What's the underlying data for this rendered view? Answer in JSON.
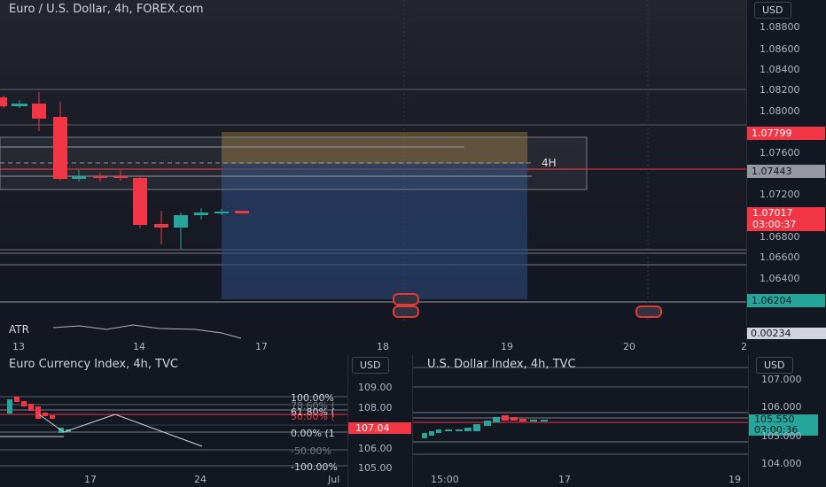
{
  "main": {
    "title": "Euro / U.S. Dollar, 4h, FOREX.com",
    "currency": "USD",
    "price_ticks": [
      "1.08800",
      "1.08600",
      "1.08400",
      "1.08200",
      "1.08000",
      "1.07600",
      "1.07400",
      "1.07200",
      "1.06800",
      "1.06600",
      "1.06400"
    ],
    "labels": {
      "upper_line": "1.07799",
      "current_dash": "1.07443",
      "last_price": "1.07017",
      "countdown": "03:00:37",
      "lower_line": "1.06204"
    },
    "zone_label": "4H",
    "colors": {
      "up": "#26a69a",
      "down": "#f23645",
      "zone": "#3a4a6b",
      "target": "#9a7b3a"
    }
  },
  "atr": {
    "label": "ATR",
    "value": "0.00234"
  },
  "time_axis": [
    "13",
    "14",
    "17",
    "18",
    "19",
    "20",
    "2"
  ],
  "eur_index": {
    "title": "Euro Currency Index, 4h, TVC",
    "currency": "USD",
    "ticks": [
      "109.00",
      "108.00",
      "107.04",
      "106.00",
      "105.00"
    ],
    "current": "107.04",
    "fib": [
      "100.00%",
      "78.60% (",
      "61.80% (",
      "50.00% (",
      "0.00% (1",
      "-50.00%",
      "-100.00%"
    ],
    "time_labels": [
      "17",
      "24",
      "Jul"
    ]
  },
  "usd_index": {
    "title": "U.S. Dollar Index, 4h, TVC",
    "currency": "USD",
    "ticks": [
      "107.000",
      "106.000",
      "105.000",
      "104.000"
    ],
    "current_price": "105.550",
    "current_time": "03:00:36",
    "time_labels": [
      "15:00",
      "17",
      "19"
    ]
  }
}
